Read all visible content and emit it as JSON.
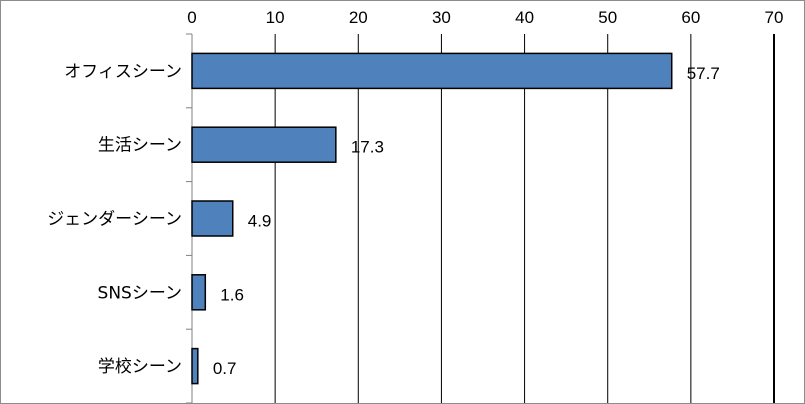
{
  "chart_data": {
    "type": "bar",
    "orientation": "horizontal",
    "title": "",
    "xlabel": "",
    "ylabel": "",
    "categories": [
      "オフィスシーン",
      "生活シーン",
      "ジェンダーシーン",
      "SNSシーン",
      "学校シーン"
    ],
    "values": [
      57.7,
      17.3,
      4.9,
      1.6,
      0.7
    ],
    "data_labels": [
      "57.7",
      "17.3",
      "4.9",
      "1.6",
      "0.7"
    ],
    "xlim": [
      0,
      70
    ],
    "x_ticks": [
      "0",
      "10",
      "20",
      "30",
      "40",
      "50",
      "60",
      "70"
    ],
    "x_axis_position": "top",
    "grid": true,
    "legend": "none",
    "colors": {
      "bar_fill": "#4f81bd",
      "bar_stroke": "#000000",
      "gridline": "#000000",
      "border": "#8c8c8c"
    }
  }
}
